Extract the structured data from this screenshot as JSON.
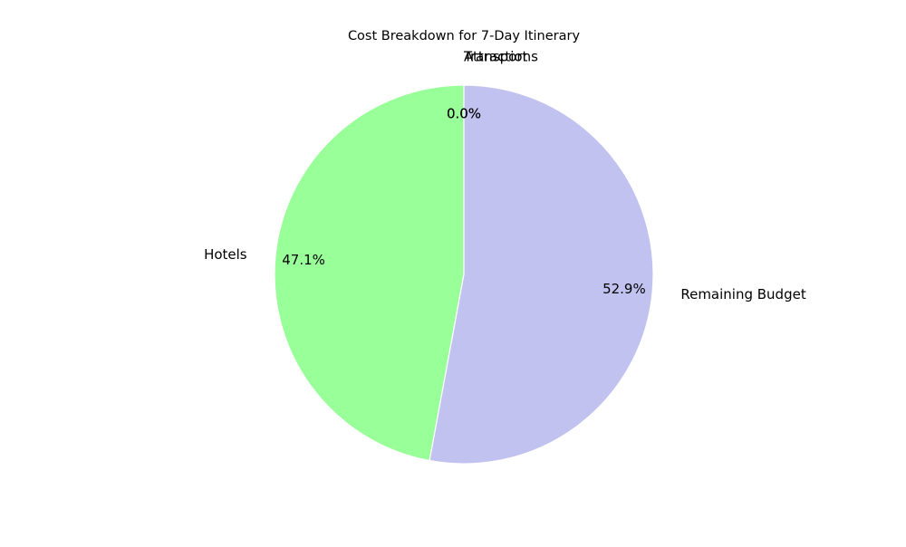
{
  "chart_data": {
    "type": "pie",
    "title": "Cost Breakdown for 7-Day Itinerary",
    "slices": [
      {
        "label": "Transport",
        "value": 0.0,
        "pct_label": "0.0%",
        "color": "#ff9999"
      },
      {
        "label": "Attractions",
        "value": 0.0,
        "pct_label": "0.0%",
        "color": "#ffcc99"
      },
      {
        "label": "Hotels",
        "value": 47.1,
        "pct_label": "47.1%",
        "color": "#99ff99"
      },
      {
        "label": "Remaining Budget",
        "value": 52.9,
        "pct_label": "52.9%",
        "color": "#c2c2f0"
      }
    ],
    "start_angle": 90,
    "direction": "counterclockwise",
    "edge_color": "#ffffff",
    "legend": false
  }
}
